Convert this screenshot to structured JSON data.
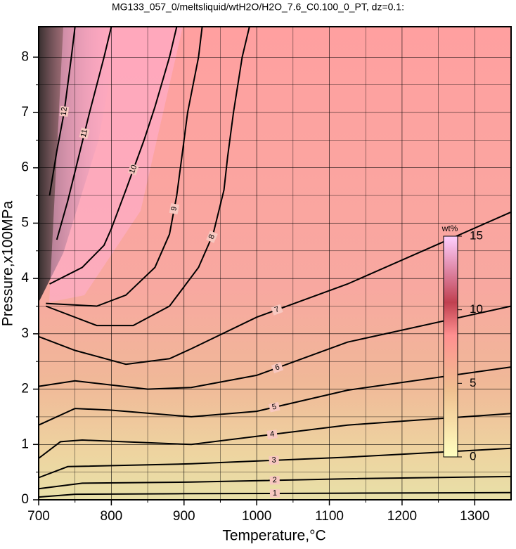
{
  "chart_data": {
    "type": "contour",
    "title": "MG133_057_0/meltsliquid/wtH2O/H2O_7.6_C0.100_0_PT, dz=0.1:",
    "x_label": "Temperature,°C",
    "y_label": "Pressure,x100MPa",
    "xlim": [
      700,
      1350
    ],
    "ylim": [
      0,
      8.55
    ],
    "xticks": [
      700,
      800,
      900,
      1000,
      1100,
      1200,
      1300
    ],
    "yticks": [
      0,
      1,
      2,
      3,
      4,
      5,
      6,
      7,
      8
    ],
    "xminorticks": [
      750,
      850,
      950,
      1050,
      1150,
      1250
    ],
    "yminorticks": [
      0.5,
      1.5,
      2.5,
      3.5,
      4.5,
      5.5,
      6.5,
      7.5
    ],
    "grid": true,
    "contours": [
      {
        "level": 1,
        "x": [
          700,
          750,
          900,
          1125,
          1350
        ],
        "y": [
          0.05,
          0.1,
          0.11,
          0.12,
          0.13
        ]
      },
      {
        "level": 2,
        "x": [
          700,
          760,
          910,
          1125,
          1350
        ],
        "y": [
          0.2,
          0.3,
          0.32,
          0.38,
          0.42
        ]
      },
      {
        "level": 3,
        "x": [
          700,
          740,
          910,
          1125,
          1350
        ],
        "y": [
          0.4,
          0.6,
          0.65,
          0.77,
          0.93
        ]
      },
      {
        "level": 4,
        "x": [
          700,
          730,
          760,
          910,
          1125,
          1350
        ],
        "y": [
          0.75,
          1.05,
          1.08,
          1.0,
          1.35,
          1.56
        ]
      },
      {
        "level": 5,
        "x": [
          700,
          750,
          800,
          910,
          1000,
          1125,
          1350
        ],
        "y": [
          1.35,
          1.65,
          1.62,
          1.5,
          1.6,
          1.98,
          2.4
        ]
      },
      {
        "level": 6,
        "x": [
          700,
          750,
          850,
          910,
          1000,
          1125,
          1350
        ],
        "y": [
          2.05,
          2.15,
          2.0,
          2.03,
          2.25,
          2.85,
          3.5
        ]
      },
      {
        "level": 7,
        "x": [
          700,
          750,
          820,
          880,
          910,
          1000,
          1125,
          1350
        ],
        "y": [
          2.95,
          2.7,
          2.45,
          2.55,
          2.73,
          3.3,
          3.9,
          5.2
        ]
      },
      {
        "level": 8,
        "x": [
          710,
          780,
          830,
          880,
          920,
          940,
          955,
          960,
          968,
          980,
          990
        ],
        "y": [
          3.5,
          3.15,
          3.15,
          3.5,
          4.2,
          4.8,
          5.6,
          6.2,
          7,
          8,
          8.55
        ]
      },
      {
        "level": 9,
        "x": [
          710,
          780,
          820,
          860,
          880,
          890,
          897,
          905,
          920,
          925
        ],
        "y": [
          3.55,
          3.5,
          3.7,
          4.2,
          4.8,
          5.5,
          6.2,
          7,
          8,
          8.55
        ]
      },
      {
        "level": 10,
        "x": [
          715,
          760,
          790,
          800,
          820,
          845,
          860,
          880,
          890
        ],
        "y": [
          3.9,
          4.2,
          4.6,
          4.9,
          5.6,
          6.5,
          7.1,
          8,
          8.55
        ]
      },
      {
        "level": 11,
        "x": [
          725,
          740,
          755,
          770,
          790,
          800
        ],
        "y": [
          4.7,
          5.4,
          6.2,
          7,
          8,
          8.55
        ]
      },
      {
        "level": 12,
        "x": [
          715,
          725,
          735,
          745,
          750
        ],
        "y": [
          5.5,
          6.3,
          7,
          8,
          8.55
        ]
      }
    ],
    "colorbar": {
      "label": "wt%",
      "lim": [
        0,
        15
      ],
      "ticks": [
        0,
        5,
        10,
        15
      ]
    }
  }
}
